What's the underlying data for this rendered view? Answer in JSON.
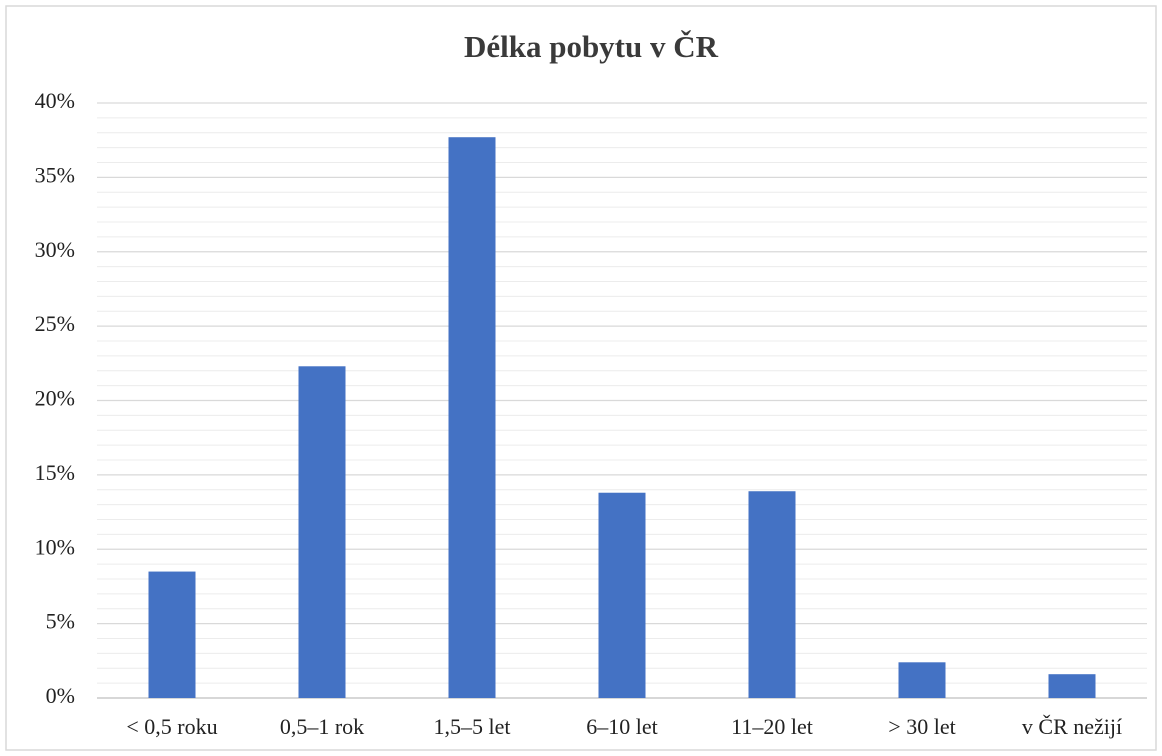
{
  "chart_data": {
    "type": "bar",
    "title": "Délka pobytu v ČR",
    "categories": [
      "< 0,5 roku",
      "0,5–1 rok",
      "1,5–5 let",
      "6–10 let",
      "11–20 let",
      "> 30 let",
      "v ČR nežijí"
    ],
    "values": [
      8.5,
      22.3,
      37.7,
      13.8,
      13.9,
      2.4,
      1.6
    ],
    "color": "#4472c4",
    "ylim": [
      0,
      40
    ],
    "yticks": [
      {
        "value": 0,
        "label": "0%"
      },
      {
        "value": 5,
        "label": "5%"
      },
      {
        "value": 10,
        "label": "10%"
      },
      {
        "value": 15,
        "label": "15%"
      },
      {
        "value": 20,
        "label": "20%"
      },
      {
        "value": 25,
        "label": "25%"
      },
      {
        "value": 30,
        "label": "30%"
      },
      {
        "value": 35,
        "label": "35%"
      },
      {
        "value": 40,
        "label": "40%"
      }
    ],
    "grid": true,
    "minor_grid": true
  }
}
